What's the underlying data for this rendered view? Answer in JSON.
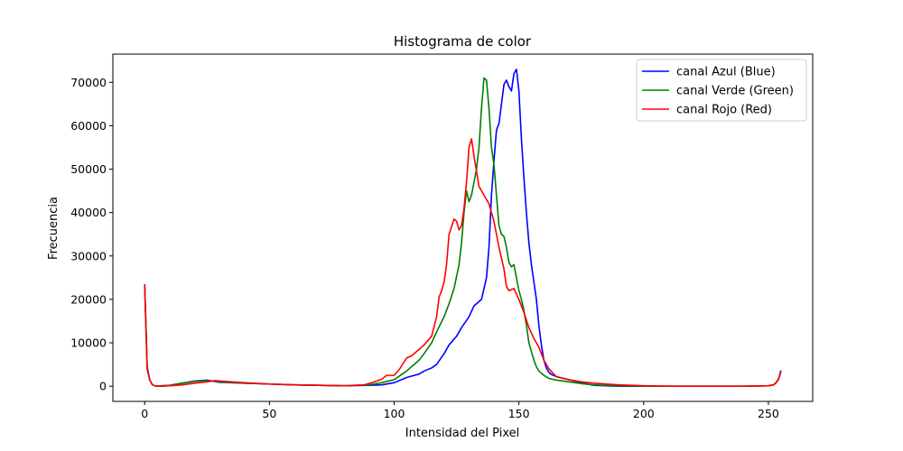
{
  "chart_data": {
    "type": "line",
    "title": "Histograma de color",
    "xlabel": "Intensidad del Pixel",
    "ylabel": "Frecuencia",
    "xlim": [
      -12.75,
      267.75
    ],
    "ylim": [
      -3500,
      76500
    ],
    "xticks": [
      0,
      50,
      100,
      150,
      200,
      250
    ],
    "yticks": [
      0,
      10000,
      20000,
      30000,
      40000,
      50000,
      60000,
      70000
    ],
    "grid": false,
    "legend_position": "top-right",
    "series": [
      {
        "name": "canal Azul (Blue)",
        "color": "#0000ff",
        "x": [
          0,
          1,
          2,
          3,
          4,
          5,
          7,
          10,
          15,
          20,
          25,
          30,
          40,
          50,
          60,
          70,
          80,
          90,
          95,
          100,
          105,
          110,
          112,
          115,
          117,
          120,
          122,
          125,
          127,
          130,
          132,
          135,
          137,
          138,
          139,
          140,
          141,
          142,
          143,
          144,
          145,
          146,
          147,
          148,
          149,
          150,
          151,
          152,
          153,
          154,
          155,
          156,
          157,
          158,
          159,
          160,
          161,
          162,
          163,
          165,
          170,
          175,
          180,
          190,
          200,
          210,
          220,
          230,
          240,
          250,
          252,
          253,
          254,
          255
        ],
        "y": [
          23500,
          4500,
          1500,
          400,
          100,
          0,
          100,
          200,
          700,
          1200,
          1400,
          900,
          700,
          500,
          300,
          200,
          100,
          200,
          300,
          800,
          2000,
          2800,
          3500,
          4200,
          5000,
          7500,
          9500,
          11500,
          13500,
          16000,
          18500,
          20000,
          25000,
          32000,
          44000,
          52000,
          59000,
          60500,
          65000,
          69500,
          70500,
          69000,
          68000,
          72000,
          73000,
          68000,
          57000,
          48000,
          40000,
          33000,
          28000,
          24000,
          20000,
          14000,
          9500,
          6000,
          4200,
          3200,
          2700,
          2200,
          1500,
          800,
          200,
          0,
          0,
          0,
          0,
          0,
          0,
          100,
          300,
          800,
          1600,
          3600
        ]
      },
      {
        "name": "canal Verde (Green)",
        "color": "#008000",
        "x": [
          0,
          1,
          2,
          3,
          4,
          5,
          7,
          10,
          15,
          20,
          25,
          30,
          40,
          50,
          60,
          70,
          80,
          90,
          95,
          100,
          105,
          110,
          112,
          115,
          117,
          120,
          122,
          124,
          126,
          127,
          128,
          129,
          130,
          131,
          132,
          133,
          134,
          135,
          136,
          137,
          138,
          139,
          140,
          141,
          142,
          143,
          144,
          145,
          146,
          147,
          148,
          149,
          150,
          151,
          152,
          153,
          154,
          155,
          156,
          157,
          158,
          160,
          162,
          165,
          170,
          175,
          180,
          190,
          200,
          210,
          220,
          230,
          240,
          250,
          252,
          253,
          254,
          255
        ],
        "y": [
          23500,
          4200,
          1500,
          400,
          100,
          0,
          100,
          200,
          700,
          1100,
          1300,
          1000,
          700,
          500,
          300,
          200,
          100,
          300,
          800,
          1500,
          3500,
          6000,
          7500,
          10000,
          12500,
          16000,
          19000,
          22500,
          28000,
          33000,
          40000,
          45000,
          42500,
          44000,
          47000,
          50000,
          55000,
          64000,
          71000,
          70500,
          64000,
          55000,
          51000,
          44000,
          37000,
          35000,
          34500,
          32000,
          28500,
          27500,
          28000,
          25000,
          22000,
          20000,
          17500,
          14000,
          10000,
          8000,
          6000,
          4500,
          3500,
          2500,
          1800,
          1400,
          1000,
          600,
          300,
          100,
          0,
          0,
          0,
          0,
          0,
          100,
          300,
          800,
          1600,
          3400
        ]
      },
      {
        "name": "canal Rojo (Red)",
        "color": "#ff0000",
        "x": [
          0,
          1,
          2,
          3,
          4,
          5,
          7,
          10,
          15,
          20,
          25,
          28,
          30,
          40,
          50,
          60,
          70,
          80,
          88,
          92,
          95,
          97,
          100,
          102,
          105,
          107,
          110,
          112,
          115,
          117,
          118,
          119,
          120,
          121,
          122,
          124,
          125,
          126,
          127,
          128,
          129,
          130,
          131,
          132,
          134,
          136,
          138,
          140,
          142,
          144,
          145,
          146,
          148,
          150,
          152,
          154,
          156,
          158,
          160,
          162,
          165,
          170,
          175,
          180,
          190,
          200,
          210,
          220,
          230,
          240,
          250,
          252,
          253,
          254,
          255
        ],
        "y": [
          23500,
          4000,
          1400,
          400,
          100,
          0,
          0,
          100,
          300,
          700,
          1000,
          1300,
          1200,
          800,
          500,
          300,
          200,
          100,
          300,
          1000,
          1600,
          2500,
          2500,
          3800,
          6500,
          7000,
          8500,
          9500,
          11500,
          16000,
          20500,
          22000,
          24000,
          28000,
          35000,
          38500,
          38000,
          36000,
          37000,
          41000,
          47000,
          55000,
          57000,
          53000,
          46000,
          44000,
          42000,
          38000,
          32000,
          27000,
          23000,
          22000,
          22500,
          20000,
          17000,
          13500,
          11000,
          9000,
          6000,
          4000,
          2200,
          1500,
          1000,
          700,
          300,
          100,
          0,
          0,
          0,
          0,
          100,
          300,
          700,
          1500,
          3300
        ]
      }
    ]
  }
}
